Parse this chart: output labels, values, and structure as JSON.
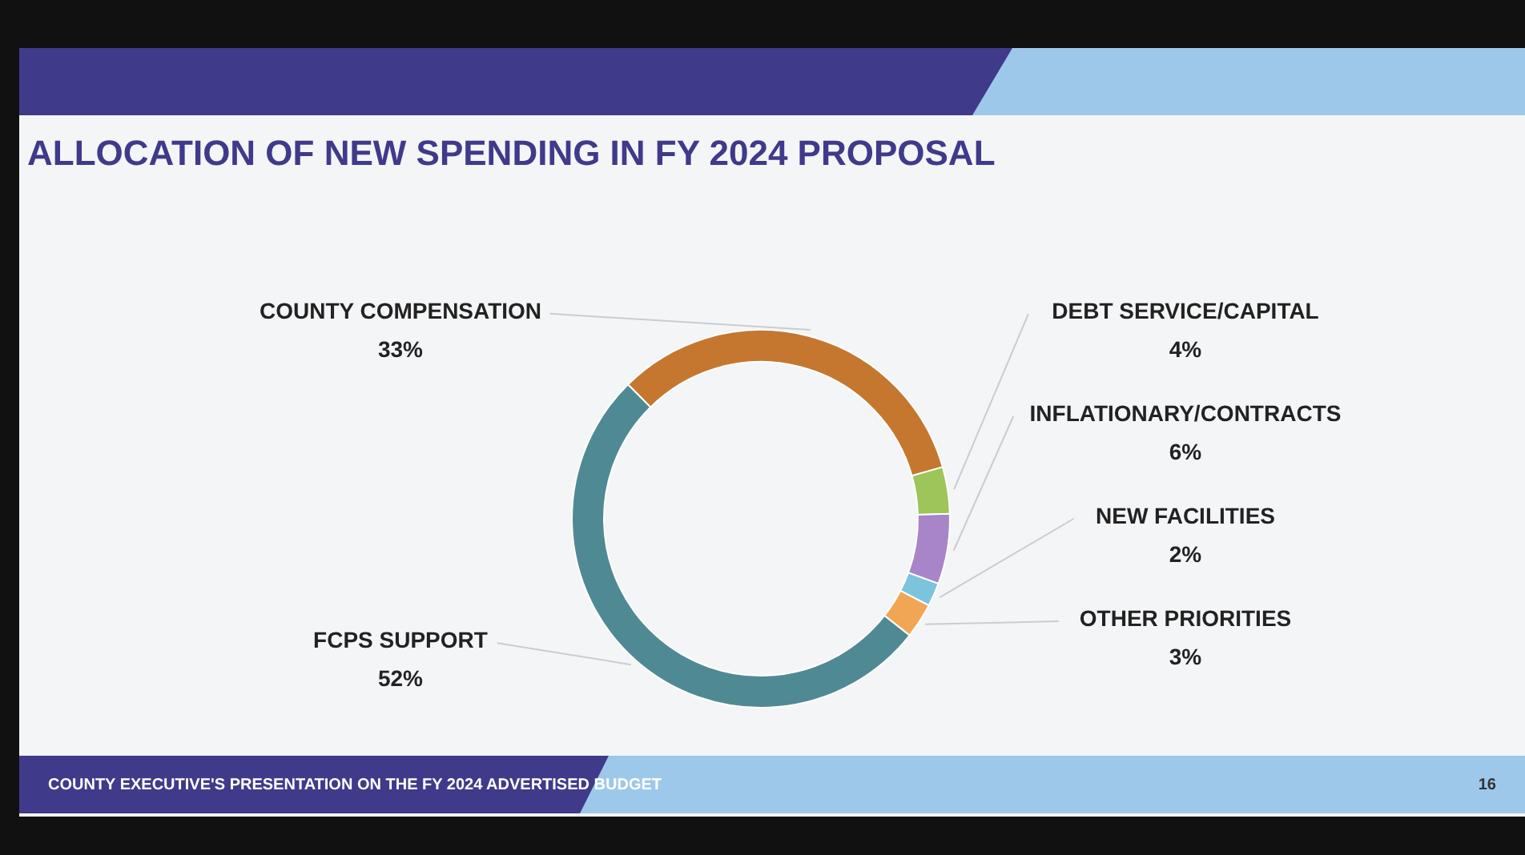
{
  "chart_data": {
    "type": "donut",
    "title": "ALLOCATION OF NEW SPENDING IN FY 2024 PROPOSAL",
    "categories": [
      "COUNTY COMPENSATION",
      "DEBT SERVICE/CAPITAL",
      "INFLATIONARY/CONTRACTS",
      "NEW FACILITIES",
      "OTHER PRIORITIES",
      "FCPS SUPPORT"
    ],
    "values": [
      33,
      4,
      6,
      2,
      3,
      52
    ],
    "value_labels": [
      "33%",
      "4%",
      "6%",
      "2%",
      "3%",
      "52%"
    ],
    "colors": [
      "#c5772f",
      "#9dc55a",
      "#a884c8",
      "#7cc4dc",
      "#f0a655",
      "#4f8a94"
    ],
    "annotations": [
      "COUNTY EXECUTIVE'S PRESENTATION ON THE FY 2024 ADVERTISED BUDGET",
      "16"
    ]
  }
}
